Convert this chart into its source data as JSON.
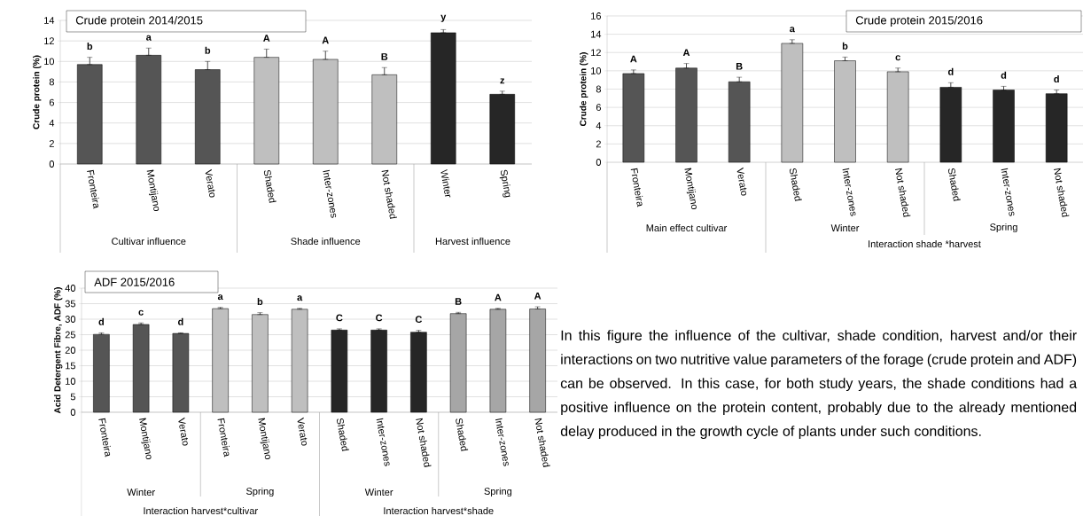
{
  "chart_data": [
    {
      "type": "bar",
      "title": "Crude protein 2014/2015",
      "ylabel": "Crude protein (%)",
      "categories": [
        "Fronteira",
        "Montijano",
        "Verato",
        "Shaded",
        "Inter-zones",
        "Not shaded",
        "Winter",
        "Spring"
      ],
      "values": [
        9.7,
        10.6,
        9.2,
        10.4,
        10.2,
        8.7,
        12.8,
        6.8
      ],
      "colors": [
        "#555555",
        "#555555",
        "#555555",
        "#bfbfbf",
        "#bfbfbf",
        "#bfbfbf",
        "#262626",
        "#262626"
      ],
      "errors": [
        [
          9.7,
          10.4
        ],
        [
          10.6,
          11.3
        ],
        [
          9.2,
          10.0
        ],
        [
          10.4,
          11.2
        ],
        [
          10.2,
          11.0
        ],
        [
          8.7,
          9.4
        ],
        [
          12.8,
          13.1
        ],
        [
          6.8,
          7.1
        ]
      ],
      "value_labels": [
        "b",
        "a",
        "b",
        "A",
        "A",
        "B",
        "y",
        "z"
      ],
      "ylim": [
        0,
        14
      ],
      "yticks": [
        0,
        2,
        4,
        6,
        8,
        10,
        12,
        14
      ],
      "grid": "y",
      "annotations": [
        "Cultivar influence",
        "Shade influence",
        "Harvest influence"
      ]
    },
    {
      "type": "bar",
      "title": "Crude protein 2015/2016",
      "ylabel": "Crude protein (%)",
      "categories": [
        "Fronteira",
        "Montijano",
        "Verato",
        "Shaded",
        "Inter-zones",
        "Not shaded",
        "Shaded",
        "Inter-zones",
        "Not shaded"
      ],
      "values": [
        9.7,
        10.3,
        8.8,
        13.0,
        11.1,
        9.9,
        8.2,
        7.9,
        7.5
      ],
      "colors": [
        "#555555",
        "#555555",
        "#555555",
        "#bfbfbf",
        "#bfbfbf",
        "#bfbfbf",
        "#262626",
        "#262626",
        "#262626"
      ],
      "errors": [
        [
          9.7,
          10.1
        ],
        [
          10.3,
          10.8
        ],
        [
          8.8,
          9.3
        ],
        [
          13.0,
          13.4
        ],
        [
          11.1,
          11.5
        ],
        [
          9.9,
          10.3
        ],
        [
          8.2,
          8.7
        ],
        [
          7.9,
          8.3
        ],
        [
          7.5,
          7.9
        ]
      ],
      "value_labels": [
        "A",
        "A",
        "B",
        "a",
        "b",
        "c",
        "d",
        "d",
        "d"
      ],
      "ylim": [
        0,
        16
      ],
      "yticks": [
        0,
        2,
        4,
        6,
        8,
        10,
        12,
        14,
        16
      ],
      "grid": "y",
      "annotations": [
        "Main effect cultivar",
        "Winter",
        "Spring",
        "Interaction shade *harvest"
      ]
    },
    {
      "type": "bar",
      "title": "ADF 2015/2016",
      "ylabel": "Acid Detergent Fibre, ADF (%)",
      "categories": [
        "Fronteira",
        "Montijano",
        "Verato",
        "Fronteira",
        "Montijano",
        "Verato",
        "Shaded",
        "Inter-zones",
        "Not shaded",
        "Shaded",
        "Inter-zones",
        "Not shaded"
      ],
      "values": [
        25.1,
        28.3,
        25.4,
        33.4,
        31.5,
        33.2,
        26.5,
        26.5,
        25.8,
        31.8,
        33.2,
        33.3
      ],
      "colors": [
        "#555555",
        "#555555",
        "#555555",
        "#bfbfbf",
        "#bfbfbf",
        "#bfbfbf",
        "#262626",
        "#262626",
        "#262626",
        "#a6a6a6",
        "#a6a6a6",
        "#a6a6a6"
      ],
      "errors": [
        [
          25.1,
          25.6
        ],
        [
          28.3,
          28.8
        ],
        [
          25.4,
          25.6
        ],
        [
          33.4,
          33.8
        ],
        [
          31.5,
          32.1
        ],
        [
          33.2,
          33.5
        ],
        [
          26.5,
          26.9
        ],
        [
          26.5,
          26.9
        ],
        [
          25.8,
          26.4
        ],
        [
          31.8,
          32.2
        ],
        [
          33.2,
          33.5
        ],
        [
          33.3,
          34.0
        ]
      ],
      "value_labels": [
        "d",
        "c",
        "d",
        "a",
        "b",
        "a",
        "C",
        "C",
        "C",
        "B",
        "A",
        "A"
      ],
      "ylim": [
        0,
        40
      ],
      "yticks": [
        0,
        5,
        10,
        15,
        20,
        25,
        30,
        35,
        40
      ],
      "grid": "y",
      "annotations": [
        "Winter",
        "Spring",
        "Winter",
        "Spring",
        "Interaction harvest*cultivar",
        "Interaction harvest*shade"
      ]
    },
    {
      "type": "other",
      "annotations": [
        "In this figure the influence of the cultivar, shade condition, harvest and/or their interactions on two nutritive value parameters of the forage (crude protein and ADF) can be observed. In this case, for both study years, the shade conditions had a positive influence on the protein content, probably due to the already mentioned delay produced in the growth cycle of plants under such conditions."
      ]
    }
  ]
}
